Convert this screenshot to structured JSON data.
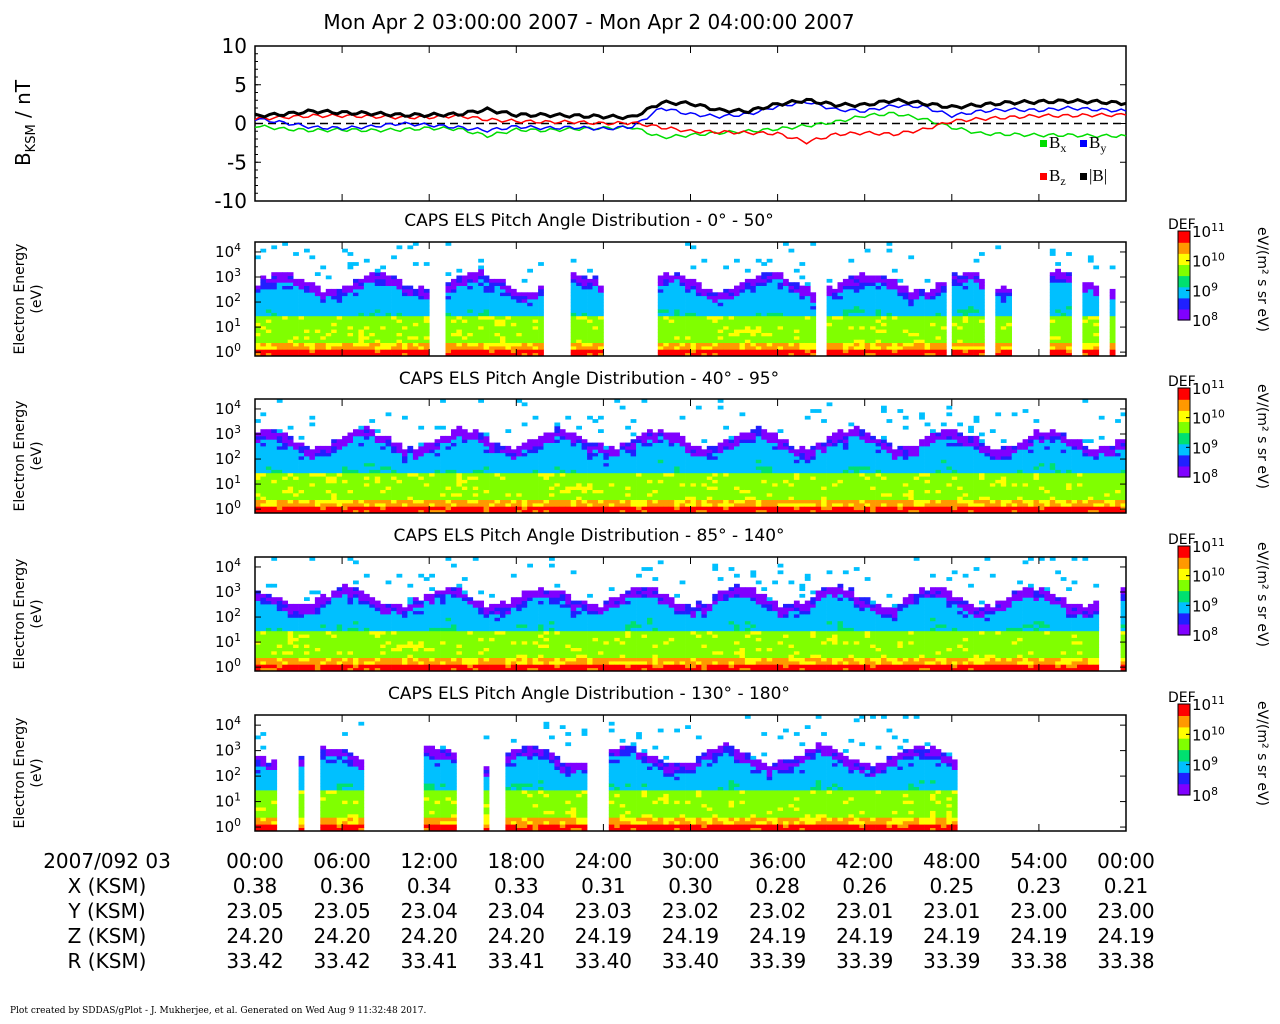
{
  "page": {
    "title": "Mon Apr 2 03:00:00 2007 - Mon Apr 2 04:00:00 2007",
    "footer": "Plot created by SDDAS/gPlot - J. Mukherjee, et al.  Generated on Wed Aug 9 11:32:48 2017."
  },
  "colors": {
    "bx": "#00dd00",
    "by": "#0000ff",
    "bz": "#ff0000",
    "btot": "#000000",
    "colorbar": [
      "#8000ff",
      "#2020ff",
      "#00c0ff",
      "#00e070",
      "#80ff00",
      "#ffff00",
      "#ff9900",
      "#ff0000"
    ]
  },
  "chart_data": [
    {
      "type": "line",
      "ylabel": "B",
      "ylabel_sub": "KSM",
      "ylabel_unit": " / nT",
      "ylim": [
        -10,
        10
      ],
      "yticks": [
        "10",
        "5",
        "0",
        "-5",
        "-10"
      ],
      "ytick_values": [
        10,
        5,
        0,
        -5,
        -10
      ],
      "xlim": [
        0,
        60
      ],
      "legend_placement": "bottom-right",
      "legend": [
        {
          "label": "B",
          "sub": "x",
          "key": "bx"
        },
        {
          "label": "B",
          "sub": "y",
          "key": "by"
        },
        {
          "label": "B",
          "sub": "z",
          "key": "bz"
        },
        {
          "label": "|B|",
          "sub": "",
          "key": "btot"
        }
      ],
      "x": [
        0,
        2,
        4,
        6,
        8,
        10,
        12,
        14,
        16,
        18,
        20,
        22,
        24,
        26,
        28,
        30,
        32,
        34,
        36,
        38,
        40,
        42,
        44,
        46,
        48,
        50,
        52,
        54,
        56,
        58,
        60
      ],
      "series": [
        {
          "key": "bx",
          "values": [
            -0.3,
            -0.7,
            -0.9,
            -0.8,
            -0.9,
            -0.8,
            -0.6,
            -0.7,
            -1.6,
            -0.8,
            -0.9,
            -0.7,
            -0.6,
            -0.5,
            -1.8,
            -1.5,
            -1.2,
            -1.0,
            -0.7,
            -0.3,
            0.2,
            1.0,
            1.3,
            0.6,
            -0.5,
            -1.3,
            -1.4,
            -1.5,
            -1.5,
            -1.6,
            -1.6
          ]
        },
        {
          "key": "by",
          "values": [
            0.6,
            0.1,
            -0.5,
            -0.6,
            -0.4,
            0.0,
            -0.2,
            -0.5,
            -0.9,
            -0.4,
            -0.6,
            -0.5,
            -0.7,
            -0.4,
            2.0,
            1.2,
            0.9,
            1.2,
            2.2,
            2.8,
            1.8,
            1.6,
            2.3,
            2.2,
            1.0,
            1.6,
            1.8,
            1.7,
            2.0,
            1.8,
            1.6
          ]
        },
        {
          "key": "bz",
          "values": [
            0.6,
            0.8,
            1.0,
            1.0,
            0.9,
            0.8,
            0.8,
            1.0,
            0.5,
            0.3,
            0.2,
            0.2,
            0.0,
            0.1,
            -0.5,
            -1.0,
            -1.1,
            -1.2,
            -1.3,
            -2.4,
            -1.4,
            -1.2,
            -1.4,
            -0.8,
            0.3,
            0.6,
            0.8,
            1.0,
            1.0,
            1.1,
            1.1
          ]
        },
        {
          "key": "btot",
          "values": [
            1.0,
            1.2,
            1.6,
            1.4,
            1.3,
            1.1,
            1.1,
            1.2,
            1.8,
            1.1,
            1.1,
            1.0,
            0.9,
            0.8,
            2.7,
            2.6,
            1.7,
            1.6,
            2.5,
            3.0,
            2.4,
            2.4,
            3.0,
            2.6,
            2.1,
            2.4,
            2.7,
            2.8,
            2.9,
            2.8,
            2.6
          ]
        }
      ]
    },
    {
      "type": "heatmap",
      "title": "CAPS ELS Pitch Angle Distribution - 0° - 50°",
      "ylabel_line1": "Electron Energy",
      "ylabel_line2": "(eV)",
      "yticks": [
        "10",
        "10",
        "10",
        "10",
        "10"
      ],
      "ytick_exponents": [
        "4",
        "3",
        "2",
        "1",
        "0"
      ],
      "ytick_values": [
        10000,
        1000,
        100,
        10,
        1
      ],
      "ylim": [
        0.7,
        25000
      ],
      "yscale": "log",
      "xlim": [
        0,
        60
      ],
      "gaps": [
        [
          12.3,
          12.8
        ],
        [
          20.2,
          21.5
        ],
        [
          24.0,
          27.4
        ],
        [
          38.8,
          39.2
        ],
        [
          47.7,
          47.9
        ],
        [
          50.3,
          50.7
        ],
        [
          52.2,
          54.4
        ],
        [
          56.4,
          57.0
        ],
        [
          58.2,
          58.7
        ],
        [
          59.4,
          60
        ]
      ],
      "colorbar": {
        "label": "DEF",
        "unit": "eV/(m² s sr eV)",
        "ticks": [
          "10",
          "10",
          "10",
          "10"
        ],
        "tick_exponents": [
          "11",
          "10",
          "9",
          "8"
        ],
        "range": [
          100000000,
          100000000000
        ]
      }
    },
    {
      "type": "heatmap",
      "title": "CAPS ELS Pitch Angle Distribution - 40° - 95°",
      "ylabel_line1": "Electron Energy",
      "ylabel_line2": "(eV)",
      "yticks": [
        "10",
        "10",
        "10",
        "10",
        "10"
      ],
      "ytick_exponents": [
        "4",
        "3",
        "2",
        "1",
        "0"
      ],
      "ytick_values": [
        10000,
        1000,
        100,
        10,
        1
      ],
      "ylim": [
        0.7,
        25000
      ],
      "yscale": "log",
      "xlim": [
        0,
        60
      ],
      "gaps": [],
      "colorbar": {
        "label": "DEF",
        "unit": "eV/(m² s sr eV)",
        "ticks": [
          "10",
          "10",
          "10",
          "10"
        ],
        "tick_exponents": [
          "11",
          "10",
          "9",
          "8"
        ],
        "range": [
          100000000,
          100000000000
        ]
      }
    },
    {
      "type": "heatmap",
      "title": "CAPS ELS Pitch Angle Distribution - 85° - 140°",
      "ylabel_line1": "Electron Energy",
      "ylabel_line2": "(eV)",
      "yticks": [
        "10",
        "10",
        "10",
        "10",
        "10"
      ],
      "ytick_exponents": [
        "4",
        "3",
        "2",
        "1",
        "0"
      ],
      "ytick_values": [
        10000,
        1000,
        100,
        10,
        1
      ],
      "ylim": [
        0.7,
        25000
      ],
      "yscale": "log",
      "xlim": [
        0,
        60
      ],
      "gaps": [
        [
          58.4,
          59.4
        ]
      ],
      "colorbar": {
        "label": "DEF",
        "unit": "eV/(m² s sr eV)",
        "ticks": [
          "10",
          "10",
          "10",
          "10"
        ],
        "tick_exponents": [
          "11",
          "10",
          "9",
          "8"
        ],
        "range": [
          100000000,
          100000000000
        ]
      }
    },
    {
      "type": "heatmap",
      "title": "CAPS ELS Pitch Angle Distribution - 130° - 180°",
      "ylabel_line1": "Electron Energy",
      "ylabel_line2": "(eV)",
      "yticks": [
        "10",
        "10",
        "10",
        "10",
        "10"
      ],
      "ytick_exponents": [
        "4",
        "3",
        "2",
        "1",
        "0"
      ],
      "ytick_values": [
        10000,
        1000,
        100,
        10,
        1
      ],
      "ylim": [
        0.7,
        25000
      ],
      "yscale": "log",
      "xlim": [
        0,
        60
      ],
      "gaps": [
        [
          1.5,
          3.0
        ],
        [
          3.4,
          3.8
        ],
        [
          4.2,
          4.5
        ],
        [
          7.5,
          11.3
        ],
        [
          14.0,
          15.6
        ],
        [
          16.4,
          17.2
        ],
        [
          22.9,
          24.1
        ],
        [
          48.5,
          60
        ]
      ],
      "colorbar": {
        "label": "DEF",
        "unit": "eV/(m² s sr eV)",
        "ticks": [
          "10",
          "10",
          "10",
          "10"
        ],
        "tick_exponents": [
          "11",
          "10",
          "9",
          "8"
        ],
        "range": [
          100000000,
          100000000000
        ]
      }
    }
  ],
  "time_axis": {
    "row_label": "2007/092 03",
    "ticks": [
      "00:00",
      "06:00",
      "12:00",
      "18:00",
      "24:00",
      "30:00",
      "36:00",
      "42:00",
      "48:00",
      "54:00",
      "00:00"
    ],
    "tick_minutes": [
      0,
      6,
      12,
      18,
      24,
      30,
      36,
      42,
      48,
      54,
      60
    ]
  },
  "ephemeris": [
    {
      "label": "X (KSM)",
      "values": [
        "0.38",
        "0.36",
        "0.34",
        "0.33",
        "0.31",
        "0.30",
        "0.28",
        "0.26",
        "0.25",
        "0.23",
        "0.21"
      ]
    },
    {
      "label": "Y (KSM)",
      "values": [
        "23.05",
        "23.05",
        "23.04",
        "23.04",
        "23.03",
        "23.02",
        "23.02",
        "23.01",
        "23.01",
        "23.00",
        "23.00"
      ]
    },
    {
      "label": "Z (KSM)",
      "values": [
        "24.20",
        "24.20",
        "24.20",
        "24.20",
        "24.19",
        "24.19",
        "24.19",
        "24.19",
        "24.19",
        "24.19",
        "24.19"
      ]
    },
    {
      "label": "R (KSM)",
      "values": [
        "33.42",
        "33.42",
        "33.41",
        "33.41",
        "33.40",
        "33.40",
        "33.39",
        "33.39",
        "33.39",
        "33.38",
        "33.38"
      ]
    }
  ]
}
